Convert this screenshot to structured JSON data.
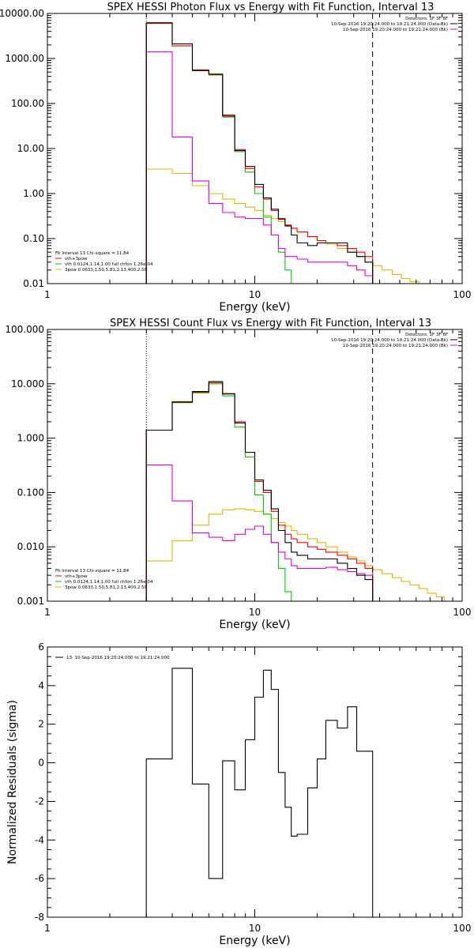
{
  "colors": {
    "black": "#000000",
    "red": "#ff0000",
    "magenta": "#e000e0",
    "green": "#00cc00",
    "yellow": "#e0b800"
  },
  "chart_data": [
    {
      "type": "line",
      "scale": {
        "x": "log",
        "y": "log"
      },
      "title": "SPEX HESSI Photon Flux vs Energy with Fit Function, Interval 13",
      "xlabel": "Energy (keV)",
      "ylabel": "",
      "xlim": [
        1,
        100
      ],
      "ylim": [
        0.01,
        10000
      ],
      "x_ticks": [
        {
          "v": 1,
          "label": "1"
        },
        {
          "v": 10,
          "label": "10"
        },
        {
          "v": 100,
          "label": "100"
        }
      ],
      "y_ticks": [
        {
          "v": 0.01,
          "label": "0.01"
        },
        {
          "v": 0.1,
          "label": "0.10"
        },
        {
          "v": 1,
          "label": "1.00"
        },
        {
          "v": 10,
          "label": "10.00"
        },
        {
          "v": 100,
          "label": "100.00"
        },
        {
          "v": 1000,
          "label": "1000.00"
        },
        {
          "v": 10000,
          "label": "10000.00"
        }
      ],
      "vlines": [
        {
          "x": 3,
          "style": "dotted"
        },
        {
          "x": 37,
          "style": "dashed"
        }
      ],
      "legend_top": [
        {
          "text": "Detectors: 1F 3F 8F",
          "color": "#000000",
          "swatch": false
        },
        {
          "text": "10-Sep-2016 19:20:24.000 to 19:21:24.000 (Data-Bk)",
          "color": "#000000",
          "swatch": true
        },
        {
          "text": "10-Sep-2016 19:20:24.000 to 19:21:24.000 (Bk)",
          "color": "#e000e0",
          "swatch": true
        }
      ],
      "legend_bottom": [
        {
          "text": "Fit Interval 13   Chi-square = 11.84",
          "color": "#000000",
          "swatch": false
        },
        {
          "text": "vth+3pow",
          "color": "#ff0000",
          "swatch": true
        },
        {
          "text": "vth 0.0124,1.14,1.00  full chfon 1.26e-04",
          "color": "#00cc00",
          "swatch": true
        },
        {
          "text": "3pow 0.0633,1.50,5.81,2.13,400,2.50",
          "color": "#e0b800",
          "swatch": true
        }
      ],
      "series": [
        {
          "name": "10-Sep-2016 19:20:24.000 to 19:21:24.000 (Data-Bk)",
          "color": "#000000",
          "bin_edges": [
            3,
            4,
            5,
            6,
            7,
            8,
            9,
            10,
            11,
            12,
            13,
            14,
            15,
            16,
            18,
            20,
            22,
            25,
            28,
            31,
            34,
            37
          ],
          "values": [
            6200,
            2100,
            540,
            450,
            55,
            9.0,
            4.0,
            1.6,
            0.8,
            0.45,
            0.27,
            0.19,
            0.12,
            0.08,
            0.07,
            0.08,
            0.08,
            0.08,
            0.05,
            0.04,
            0.03
          ]
        },
        {
          "name": "vth+3pow",
          "color": "#ff0000",
          "bin_edges": [
            3,
            4,
            5,
            6,
            7,
            8,
            9,
            10,
            11,
            12,
            13,
            14,
            15,
            16,
            18,
            20,
            22,
            25,
            28,
            31,
            34,
            37
          ],
          "values": [
            6000,
            1900,
            560,
            440,
            52,
            9.5,
            3.6,
            1.4,
            0.75,
            0.42,
            0.28,
            0.2,
            0.17,
            0.14,
            0.11,
            0.09,
            0.08,
            0.07,
            0.06,
            0.05,
            0.04
          ]
        },
        {
          "name": "vth 0.0124,1.14,1.00  full chfon 1.26e-04",
          "color": "#00cc00",
          "bin_edges": [
            3,
            4,
            5,
            6,
            7,
            8,
            9,
            10,
            11,
            12,
            13,
            14,
            15,
            16
          ],
          "values": [
            6000,
            1900,
            540,
            430,
            50,
            8.5,
            3.0,
            1.0,
            0.3,
            0.12,
            0.05,
            0.02,
            0.01
          ]
        },
        {
          "name": "3pow 0.0633,1.50,5.81,2.13,400,2.50",
          "color": "#e0b800",
          "bin_edges": [
            3,
            4,
            5,
            6,
            7,
            8,
            9,
            10,
            11,
            12,
            13,
            14,
            15,
            16,
            18,
            20,
            22,
            25,
            28,
            31,
            34,
            37,
            41,
            46,
            51,
            56,
            62
          ],
          "values": [
            3.5,
            2.8,
            1.5,
            1.0,
            0.75,
            0.6,
            0.5,
            0.42,
            0.33,
            0.28,
            0.24,
            0.2,
            0.17,
            0.14,
            0.11,
            0.09,
            0.075,
            0.06,
            0.05,
            0.04,
            0.03,
            0.025,
            0.02,
            0.016,
            0.013,
            0.011
          ]
        },
        {
          "name": "10-Sep-2016 19:20:24.000 to 19:21:24.000 (Bk)",
          "color": "#e000e0",
          "bin_edges": [
            3,
            4,
            5,
            6,
            7,
            8,
            9,
            10,
            11,
            12,
            13,
            14,
            15,
            16,
            18,
            20,
            22,
            25,
            28,
            31,
            34,
            37
          ],
          "values": [
            1400,
            18,
            1.9,
            0.6,
            0.38,
            0.3,
            0.28,
            0.28,
            0.2,
            0.12,
            0.06,
            0.04,
            0.04,
            0.035,
            0.03,
            0.03,
            0.03,
            0.03,
            0.025,
            0.02,
            0.015
          ]
        }
      ]
    },
    {
      "type": "line",
      "scale": {
        "x": "log",
        "y": "log"
      },
      "title": "SPEX HESSI Count Flux vs Energy with Fit Function, Interval 13",
      "xlabel": "Energy (keV)",
      "ylabel": "",
      "xlim": [
        1,
        100
      ],
      "ylim": [
        0.001,
        100
      ],
      "x_ticks": [
        {
          "v": 1,
          "label": "1"
        },
        {
          "v": 10,
          "label": "10"
        },
        {
          "v": 100,
          "label": "100"
        }
      ],
      "y_ticks": [
        {
          "v": 0.001,
          "label": "0.001"
        },
        {
          "v": 0.01,
          "label": "0.010"
        },
        {
          "v": 0.1,
          "label": "0.100"
        },
        {
          "v": 1,
          "label": "1.000"
        },
        {
          "v": 10,
          "label": "10.000"
        },
        {
          "v": 100,
          "label": "100.000"
        }
      ],
      "vlines": [
        {
          "x": 3,
          "style": "dotted"
        },
        {
          "x": 37,
          "style": "dashed"
        }
      ],
      "legend_top": [
        {
          "text": "Detectors: 1F 3F 8F",
          "color": "#000000",
          "swatch": false
        },
        {
          "text": "10-Sep-2016 19:20:24.000 to 19:21:24.000 (Data-Bk)",
          "color": "#000000",
          "swatch": true
        },
        {
          "text": "10-Sep-2016 19:20:24.000 to 19:21:24.000 (Bk)",
          "color": "#e000e0",
          "swatch": true
        }
      ],
      "legend_bottom": [
        {
          "text": "Fit Interval 13   Chi-square = 11.84",
          "color": "#000000",
          "swatch": false
        },
        {
          "text": "vth+3pow",
          "color": "#ff0000",
          "swatch": true
        },
        {
          "text": "vth 0.0124,1.14,1.00  full chfon 1.26e-04",
          "color": "#00cc00",
          "swatch": true
        },
        {
          "text": "3pow 0.0633,1.50,5.81,2.13,400,2.50",
          "color": "#e0b800",
          "swatch": true
        }
      ],
      "series": [
        {
          "name": "10-Sep-2016 19:20:24.000 to 19:21:24.000 (Data-Bk)",
          "color": "#000000",
          "bin_edges": [
            3,
            4,
            5,
            6,
            7,
            8,
            9,
            10,
            11,
            12,
            13,
            14,
            15,
            16,
            18,
            20,
            22,
            25,
            28,
            31,
            34,
            37
          ],
          "values": [
            1.4,
            4.6,
            7.2,
            11,
            6.5,
            1.9,
            0.55,
            0.17,
            0.11,
            0.05,
            0.02,
            0.012,
            0.008,
            0.007,
            0.006,
            0.006,
            0.006,
            0.005,
            0.004,
            0.003,
            0.0025
          ]
        },
        {
          "name": "vth+3pow",
          "color": "#ff0000",
          "bin_edges": [
            3,
            4,
            5,
            6,
            7,
            8,
            9,
            10,
            11,
            12,
            13,
            14,
            15,
            16,
            18,
            20,
            22,
            25,
            28,
            31,
            34,
            37
          ],
          "values": [
            1.4,
            4.7,
            7.0,
            10.5,
            6.6,
            2.0,
            0.55,
            0.16,
            0.1,
            0.045,
            0.025,
            0.017,
            0.014,
            0.012,
            0.01,
            0.009,
            0.008,
            0.007,
            0.006,
            0.005,
            0.004
          ]
        },
        {
          "name": "vth 0.0124,1.14,1.00  full chfon 1.26e-04",
          "color": "#00cc00",
          "bin_edges": [
            3,
            4,
            5,
            6,
            7,
            8,
            9,
            10,
            11,
            12,
            13,
            14,
            15,
            16
          ],
          "values": [
            1.4,
            4.5,
            6.8,
            10,
            6.0,
            1.6,
            0.45,
            0.09,
            0.04,
            0.012,
            0.004,
            0.0015,
            0.001
          ]
        },
        {
          "name": "3pow 0.0633,1.50,5.81,2.13,400,2.50",
          "color": "#e0b800",
          "bin_edges": [
            3,
            4,
            5,
            6,
            7,
            8,
            9,
            10,
            11,
            12,
            13,
            14,
            15,
            16,
            18,
            20,
            22,
            25,
            28,
            31,
            34,
            37,
            41,
            46,
            51,
            56,
            62,
            68,
            75,
            82,
            90
          ],
          "values": [
            0.0055,
            0.013,
            0.025,
            0.04,
            0.048,
            0.05,
            0.048,
            0.045,
            0.04,
            0.033,
            0.028,
            0.024,
            0.02,
            0.017,
            0.014,
            0.012,
            0.01,
            0.008,
            0.0065,
            0.0055,
            0.0045,
            0.0038,
            0.0032,
            0.0027,
            0.0023,
            0.002,
            0.0017,
            0.0014,
            0.0012,
            0.001
          ]
        },
        {
          "name": "10-Sep-2016 19:20:24.000 to 19:21:24.000 (Bk)",
          "color": "#e000e0",
          "bin_edges": [
            3,
            4,
            5,
            6,
            7,
            8,
            9,
            10,
            11,
            12,
            13,
            14,
            15,
            16,
            18,
            20,
            22,
            25,
            28,
            31,
            34,
            37
          ],
          "values": [
            0.32,
            0.07,
            0.018,
            0.015,
            0.013,
            0.017,
            0.021,
            0.024,
            0.017,
            0.012,
            0.008,
            0.006,
            0.0045,
            0.004,
            0.004,
            0.004,
            0.0042,
            0.0038,
            0.0035,
            0.0032,
            0.003
          ]
        }
      ]
    },
    {
      "type": "line",
      "scale": {
        "x": "log",
        "y": "linear"
      },
      "title": "",
      "xlabel": "Energy (keV)",
      "ylabel": "Normalized Residuals (sigma)",
      "xlim": [
        1,
        100
      ],
      "ylim": [
        -8,
        6
      ],
      "x_ticks": [
        {
          "v": 1,
          "label": "1"
        },
        {
          "v": 10,
          "label": "10"
        },
        {
          "v": 100,
          "label": "100"
        }
      ],
      "y_ticks": [
        {
          "v": -8,
          "label": "-8"
        },
        {
          "v": -6,
          "label": "-6"
        },
        {
          "v": -4,
          "label": "-4"
        },
        {
          "v": -2,
          "label": "-2"
        },
        {
          "v": 0,
          "label": "0"
        },
        {
          "v": 2,
          "label": "2"
        },
        {
          "v": 4,
          "label": "4"
        },
        {
          "v": 6,
          "label": "6"
        }
      ],
      "vlines": [],
      "legend_top": [
        {
          "text": "13. 10-Sep-2016 19:20:24.000 to 19:21:24.000",
          "color": "#000000",
          "swatch": true
        }
      ],
      "legend_bottom": [],
      "series": [
        {
          "name": "13. 10-Sep-2016 19:20:24.000 to 19:21:24.000",
          "color": "#000000",
          "bin_edges": [
            3,
            4,
            5,
            6,
            7,
            8,
            9,
            10,
            11,
            12,
            13,
            14,
            15,
            16,
            18,
            20,
            22,
            25,
            28,
            31,
            34,
            37
          ],
          "values": [
            0.2,
            4.9,
            -1.1,
            -6.0,
            0.1,
            -1.4,
            1.2,
            3.4,
            4.8,
            3.8,
            -0.5,
            -2.3,
            -3.8,
            -3.7,
            -1.3,
            0.2,
            2.2,
            1.8,
            2.9,
            0.6,
            0.6
          ],
          "drop_to_min": true
        }
      ]
    }
  ]
}
